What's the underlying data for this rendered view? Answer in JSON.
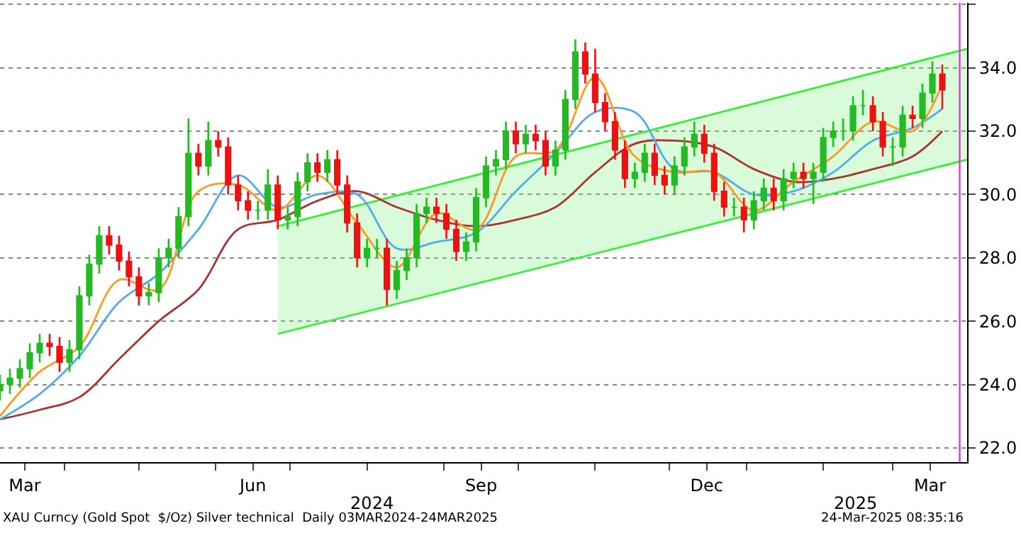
{
  "chart_data": {
    "type": "candlestick",
    "x": [
      "2024-03-06",
      "2024-03-10",
      "2024-03-14",
      "2024-03-18",
      "2024-03-22",
      "2024-03-26",
      "2024-03-30",
      "2024-04-03",
      "2024-04-07",
      "2024-04-11",
      "2024-04-15",
      "2024-04-19",
      "2024-04-23",
      "2024-04-27",
      "2024-05-01",
      "2024-05-05",
      "2024-05-09",
      "2024-05-13",
      "2024-05-17",
      "2024-05-21",
      "2024-05-25",
      "2024-05-29",
      "2024-06-02",
      "2024-06-06",
      "2024-06-10",
      "2024-06-14",
      "2024-06-18",
      "2024-06-22",
      "2024-06-26",
      "2024-06-30",
      "2024-07-04",
      "2024-07-08",
      "2024-07-12",
      "2024-07-16",
      "2024-07-20",
      "2024-07-24",
      "2024-07-28",
      "2024-08-01",
      "2024-08-05",
      "2024-08-09",
      "2024-08-13",
      "2024-08-17",
      "2024-08-21",
      "2024-08-25",
      "2024-08-29",
      "2024-09-02",
      "2024-09-06",
      "2024-09-10",
      "2024-09-14",
      "2024-09-18",
      "2024-09-22",
      "2024-09-26",
      "2024-09-30",
      "2024-10-04",
      "2024-10-08",
      "2024-10-12",
      "2024-10-16",
      "2024-10-20",
      "2024-10-24",
      "2024-10-28",
      "2024-11-01",
      "2024-11-05",
      "2024-11-09",
      "2024-11-13",
      "2024-11-17",
      "2024-11-21",
      "2024-11-25",
      "2024-11-29",
      "2024-12-03",
      "2024-12-07",
      "2024-12-11",
      "2024-12-15",
      "2024-12-19",
      "2024-12-23",
      "2024-12-27",
      "2024-12-31",
      "2025-01-04",
      "2025-01-08",
      "2025-01-12",
      "2025-01-16",
      "2025-01-20",
      "2025-01-24",
      "2025-01-28",
      "2025-02-01",
      "2025-02-05",
      "2025-02-09",
      "2025-02-13",
      "2025-02-17",
      "2025-02-21",
      "2025-02-25",
      "2025-03-01",
      "2025-03-05",
      "2025-03-09",
      "2025-03-13",
      "2025-03-17",
      "2025-03-21"
    ],
    "ohlc": [
      [
        23.8,
        24.3,
        23.5,
        24.0
      ],
      [
        24.0,
        24.5,
        23.7,
        24.2
      ],
      [
        24.2,
        24.8,
        23.9,
        24.5
      ],
      [
        24.5,
        25.3,
        24.2,
        25.0
      ],
      [
        25.0,
        25.6,
        24.7,
        25.3
      ],
      [
        25.3,
        25.6,
        24.9,
        25.2
      ],
      [
        25.2,
        25.5,
        24.4,
        24.7
      ],
      [
        24.7,
        25.4,
        24.4,
        25.1
      ],
      [
        25.1,
        27.1,
        24.8,
        26.8
      ],
      [
        26.8,
        28.1,
        26.5,
        27.8
      ],
      [
        27.8,
        29.0,
        27.5,
        28.7
      ],
      [
        28.7,
        29.0,
        28.1,
        28.4
      ],
      [
        28.4,
        28.7,
        27.6,
        27.9
      ],
      [
        27.9,
        28.2,
        27.1,
        27.4
      ],
      [
        27.4,
        27.7,
        26.5,
        26.8
      ],
      [
        26.8,
        27.2,
        26.5,
        26.9
      ],
      [
        26.9,
        28.3,
        26.6,
        28.0
      ],
      [
        28.0,
        28.6,
        27.7,
        28.3
      ],
      [
        28.3,
        29.6,
        28.0,
        29.3
      ],
      [
        29.3,
        32.4,
        29.0,
        31.3
      ],
      [
        31.3,
        31.6,
        30.6,
        30.9
      ],
      [
        30.9,
        32.3,
        30.6,
        31.7
      ],
      [
        31.7,
        32.0,
        31.2,
        31.5
      ],
      [
        31.5,
        31.8,
        30.0,
        30.3
      ],
      [
        30.3,
        30.6,
        29.5,
        29.8
      ],
      [
        29.8,
        30.1,
        29.2,
        29.5
      ],
      [
        29.5,
        29.8,
        29.2,
        29.5
      ],
      [
        29.5,
        30.8,
        29.2,
        30.3
      ],
      [
        30.3,
        30.6,
        28.9,
        29.2
      ],
      [
        29.2,
        29.6,
        28.9,
        29.3
      ],
      [
        29.3,
        30.7,
        29.0,
        30.4
      ],
      [
        30.4,
        31.3,
        30.1,
        31.0
      ],
      [
        31.0,
        31.3,
        30.4,
        30.7
      ],
      [
        30.7,
        31.4,
        30.4,
        31.1
      ],
      [
        31.1,
        31.4,
        30.0,
        30.3
      ],
      [
        30.3,
        30.6,
        28.8,
        29.1
      ],
      [
        29.1,
        29.4,
        27.7,
        28.0
      ],
      [
        28.0,
        28.6,
        27.7,
        28.3
      ],
      [
        28.3,
        28.6,
        28.0,
        28.3
      ],
      [
        28.3,
        28.6,
        26.5,
        27.0
      ],
      [
        27.0,
        27.9,
        26.7,
        27.6
      ],
      [
        27.6,
        28.3,
        27.3,
        28.0
      ],
      [
        28.0,
        29.7,
        27.7,
        29.4
      ],
      [
        29.4,
        29.9,
        29.1,
        29.6
      ],
      [
        29.6,
        29.9,
        29.1,
        29.4
      ],
      [
        29.4,
        29.7,
        28.6,
        28.9
      ],
      [
        28.9,
        29.2,
        27.9,
        28.2
      ],
      [
        28.2,
        28.8,
        27.9,
        28.5
      ],
      [
        28.5,
        30.2,
        28.2,
        29.9
      ],
      [
        29.9,
        31.2,
        29.6,
        30.9
      ],
      [
        30.9,
        31.4,
        30.6,
        31.1
      ],
      [
        31.1,
        32.3,
        30.8,
        32.0
      ],
      [
        32.0,
        32.3,
        31.3,
        31.6
      ],
      [
        31.6,
        32.2,
        31.3,
        31.9
      ],
      [
        31.9,
        32.2,
        31.4,
        31.7
      ],
      [
        31.7,
        32.0,
        30.6,
        30.9
      ],
      [
        30.9,
        31.7,
        30.6,
        31.4
      ],
      [
        31.4,
        33.3,
        31.1,
        33.0
      ],
      [
        33.0,
        34.9,
        32.7,
        34.5
      ],
      [
        34.5,
        34.8,
        33.5,
        33.8
      ],
      [
        33.8,
        34.6,
        32.6,
        32.9
      ],
      [
        32.9,
        33.2,
        32.0,
        32.3
      ],
      [
        32.3,
        32.6,
        31.1,
        31.4
      ],
      [
        31.4,
        31.7,
        30.2,
        30.5
      ],
      [
        30.5,
        31.0,
        30.2,
        30.7
      ],
      [
        30.7,
        31.6,
        30.4,
        31.3
      ],
      [
        31.3,
        31.6,
        30.3,
        30.6
      ],
      [
        30.6,
        30.9,
        30.0,
        30.3
      ],
      [
        30.3,
        31.2,
        30.0,
        30.9
      ],
      [
        30.9,
        31.8,
        30.6,
        31.5
      ],
      [
        31.5,
        32.3,
        31.2,
        31.9
      ],
      [
        31.9,
        32.2,
        31.0,
        31.3
      ],
      [
        31.3,
        31.6,
        29.8,
        30.1
      ],
      [
        30.1,
        30.4,
        29.3,
        29.6
      ],
      [
        29.6,
        29.9,
        29.3,
        29.6
      ],
      [
        29.6,
        29.9,
        28.8,
        29.2
      ],
      [
        29.2,
        30.1,
        28.9,
        29.8
      ],
      [
        29.8,
        30.5,
        29.5,
        30.2
      ],
      [
        30.2,
        30.5,
        29.5,
        29.8
      ],
      [
        29.8,
        30.8,
        29.5,
        30.5
      ],
      [
        30.5,
        31.0,
        30.2,
        30.7
      ],
      [
        30.7,
        31.0,
        30.2,
        30.5
      ],
      [
        30.5,
        31.0,
        29.7,
        30.7
      ],
      [
        30.7,
        32.1,
        30.4,
        31.8
      ],
      [
        31.8,
        32.3,
        31.5,
        32.0
      ],
      [
        32.0,
        32.4,
        31.7,
        32.0
      ],
      [
        32.0,
        33.1,
        31.7,
        32.8
      ],
      [
        32.8,
        33.3,
        32.5,
        32.8
      ],
      [
        32.8,
        33.1,
        32.0,
        32.3
      ],
      [
        32.3,
        32.6,
        31.2,
        31.5
      ],
      [
        31.5,
        31.8,
        30.9,
        31.5
      ],
      [
        31.5,
        32.8,
        31.2,
        32.5
      ],
      [
        32.5,
        32.8,
        32.1,
        32.4
      ],
      [
        32.4,
        33.5,
        32.1,
        33.2
      ],
      [
        33.2,
        34.2,
        32.9,
        33.8
      ],
      [
        33.8,
        34.1,
        32.7,
        33.3
      ]
    ],
    "colors": [
      "#22bb22",
      "#22bb22",
      "#22bb22",
      "#22bb22",
      "#22bb22",
      "#ee1111",
      "#ee1111",
      "#22bb22",
      "#22bb22",
      "#22bb22",
      "#22bb22",
      "#ee1111",
      "#ee1111",
      "#ee1111",
      "#ee1111",
      "#22bb22",
      "#22bb22",
      "#22bb22",
      "#22bb22",
      "#22bb22",
      "#ee1111",
      "#22bb22",
      "#ee1111",
      "#ee1111",
      "#ee1111",
      "#ee1111",
      "#22bb22",
      "#22bb22",
      "#ee1111",
      "#22bb22",
      "#22bb22",
      "#22bb22",
      "#ee1111",
      "#22bb22",
      "#ee1111",
      "#ee1111",
      "#ee1111",
      "#22bb22",
      "#22bb22",
      "#ee1111",
      "#22bb22",
      "#22bb22",
      "#22bb22",
      "#22bb22",
      "#ee1111",
      "#ee1111",
      "#ee1111",
      "#22bb22",
      "#22bb22",
      "#22bb22",
      "#22bb22",
      "#22bb22",
      "#ee1111",
      "#22bb22",
      "#ee1111",
      "#ee1111",
      "#22bb22",
      "#22bb22",
      "#22bb22",
      "#ee1111",
      "#ee1111",
      "#ee1111",
      "#ee1111",
      "#ee1111",
      "#22bb22",
      "#22bb22",
      "#ee1111",
      "#ee1111",
      "#22bb22",
      "#22bb22",
      "#22bb22",
      "#ee1111",
      "#ee1111",
      "#ee1111",
      "#22bb22",
      "#ee1111",
      "#22bb22",
      "#22bb22",
      "#ee1111",
      "#22bb22",
      "#22bb22",
      "#ee1111",
      "#22bb22",
      "#22bb22",
      "#22bb22",
      "#22bb22",
      "#22bb22",
      "#22bb22",
      "#ee1111",
      "#ee1111",
      "#22bb22",
      "#22bb22",
      "#ee1111",
      "#22bb22",
      "#22bb22",
      "#ee1111"
    ],
    "series": [
      {
        "type": "line",
        "color": "#33ee33",
        "x": [
          "2024-06-26",
          "2025-03-31"
        ],
        "values": [
          25.6,
          31.1
        ]
      },
      {
        "type": "line",
        "color": "#33ee33",
        "x": [
          "2024-06-26",
          "2025-03-31"
        ],
        "values": [
          29.0,
          34.6
        ],
        "lower": [
          25.6,
          31.1
        ],
        "upper": [
          29.0,
          34.6
        ]
      },
      {
        "type": "line",
        "color": "#aa3333",
        "x": [
          "2024-03-06",
          "2024-03-22",
          "2024-04-07",
          "2024-04-23",
          "2024-05-09",
          "2024-05-25",
          "2024-06-10",
          "2024-06-26",
          "2024-07-12",
          "2024-07-28",
          "2024-08-13",
          "2024-08-29",
          "2024-09-14",
          "2024-09-30",
          "2024-10-16",
          "2024-11-01",
          "2024-11-17",
          "2024-12-03",
          "2024-12-19",
          "2025-01-04",
          "2025-01-20",
          "2025-02-05",
          "2025-02-21",
          "2025-03-09",
          "2025-03-21"
        ],
        "values": [
          22.9,
          23.2,
          23.6,
          24.8,
          26.0,
          27.0,
          28.9,
          29.2,
          29.8,
          30.1,
          29.6,
          29.2,
          29.0,
          29.2,
          29.6,
          30.7,
          31.6,
          31.7,
          31.5,
          30.8,
          30.4,
          30.5,
          30.8,
          31.2,
          32.0
        ]
      },
      {
        "type": "line",
        "color": "#55aaee",
        "x": [
          "2024-03-06",
          "2024-03-22",
          "2024-04-07",
          "2024-04-23",
          "2024-05-09",
          "2024-05-25",
          "2024-06-10",
          "2024-06-26",
          "2024-07-12",
          "2024-07-28",
          "2024-08-13",
          "2024-08-29",
          "2024-09-14",
          "2024-09-30",
          "2024-10-16",
          "2024-11-01",
          "2024-11-17",
          "2024-12-03",
          "2024-12-19",
          "2025-01-04",
          "2025-01-20",
          "2025-02-05",
          "2025-02-21",
          "2025-03-09",
          "2025-03-21"
        ],
        "values": [
          22.9,
          23.7,
          24.9,
          26.6,
          27.5,
          28.9,
          30.6,
          29.6,
          30.0,
          30.0,
          28.3,
          28.5,
          28.8,
          30.1,
          31.3,
          32.6,
          32.6,
          30.8,
          30.7,
          30.0,
          30.1,
          30.7,
          31.7,
          32.1,
          32.7
        ]
      },
      {
        "type": "line",
        "color": "#ff9922",
        "x": [
          "2024-03-06",
          "2024-03-22",
          "2024-04-07",
          "2024-04-23",
          "2024-05-09",
          "2024-05-25",
          "2024-06-10",
          "2024-06-26",
          "2024-07-12",
          "2024-07-28",
          "2024-08-13",
          "2024-08-29",
          "2024-09-14",
          "2024-09-30",
          "2024-10-16",
          "2024-11-01",
          "2024-11-17",
          "2024-12-03",
          "2024-12-19",
          "2025-01-04",
          "2025-01-20",
          "2025-02-05",
          "2025-02-21",
          "2025-03-09",
          "2025-03-21"
        ],
        "values": [
          23.0,
          24.4,
          25.2,
          27.3,
          27.0,
          30.1,
          30.3,
          29.5,
          30.6,
          29.1,
          27.7,
          29.4,
          28.9,
          31.2,
          31.4,
          33.7,
          31.2,
          30.7,
          30.7,
          29.5,
          30.4,
          31.2,
          32.3,
          32.0,
          33.5
        ]
      }
    ],
    "xlim": [
      "2024-03-06",
      "2025-03-31"
    ],
    "xticks": [
      {
        "value": "2024-03-16",
        "label": "Mar"
      },
      {
        "value": "2024-04-01",
        "label": null
      },
      {
        "value": "2024-05-01",
        "label": null
      },
      {
        "value": "2024-06-01",
        "label": null
      },
      {
        "value": "2024-06-16",
        "label": "Jun"
      },
      {
        "value": "2024-07-01",
        "label": null
      },
      {
        "value": "2024-08-01",
        "label": null
      },
      {
        "value": "2024-09-01",
        "label": null
      },
      {
        "value": "2024-09-16",
        "label": "Sep"
      },
      {
        "value": "2024-10-01",
        "label": null
      },
      {
        "value": "2024-11-01",
        "label": null
      },
      {
        "value": "2024-12-01",
        "label": null
      },
      {
        "value": "2024-12-16",
        "label": "Dec"
      },
      {
        "value": "2025-01-01",
        "label": null
      },
      {
        "value": "2025-02-01",
        "label": null
      },
      {
        "value": "2025-03-01",
        "label": null
      },
      {
        "value": "2025-03-16",
        "label": "Mar"
      }
    ],
    "x2lim": [
      "2024-03-06",
      "2025-03-31"
    ],
    "x2ticks": [
      {
        "value": "2024-08-03",
        "label": "2024"
      },
      {
        "value": "2025-02-14",
        "label": "2025"
      }
    ],
    "ylim": [
      21.55,
      36.05
    ],
    "yticks": [
      {
        "value": 22,
        "label": "22.0"
      },
      {
        "value": 24,
        "label": "24.0"
      },
      {
        "value": 26,
        "label": "26.0"
      },
      {
        "value": 28,
        "label": "28.0"
      },
      {
        "value": 30,
        "label": "30.0"
      },
      {
        "value": 32,
        "label": "32.0"
      },
      {
        "value": 34,
        "label": "34.0"
      },
      {
        "value": 36,
        "label": null
      }
    ],
    "grid": "y",
    "ref_lines": [
      {
        "axis": "x",
        "value": "2025-03-28",
        "color": "#cc44cc"
      }
    ],
    "annotations": [
      "XAU Curncy (Gold Spot  $/Oz) Silver technical  Daily 03MAR2024-24MAR2025",
      "24-Mar-2025 08:35:16"
    ]
  }
}
